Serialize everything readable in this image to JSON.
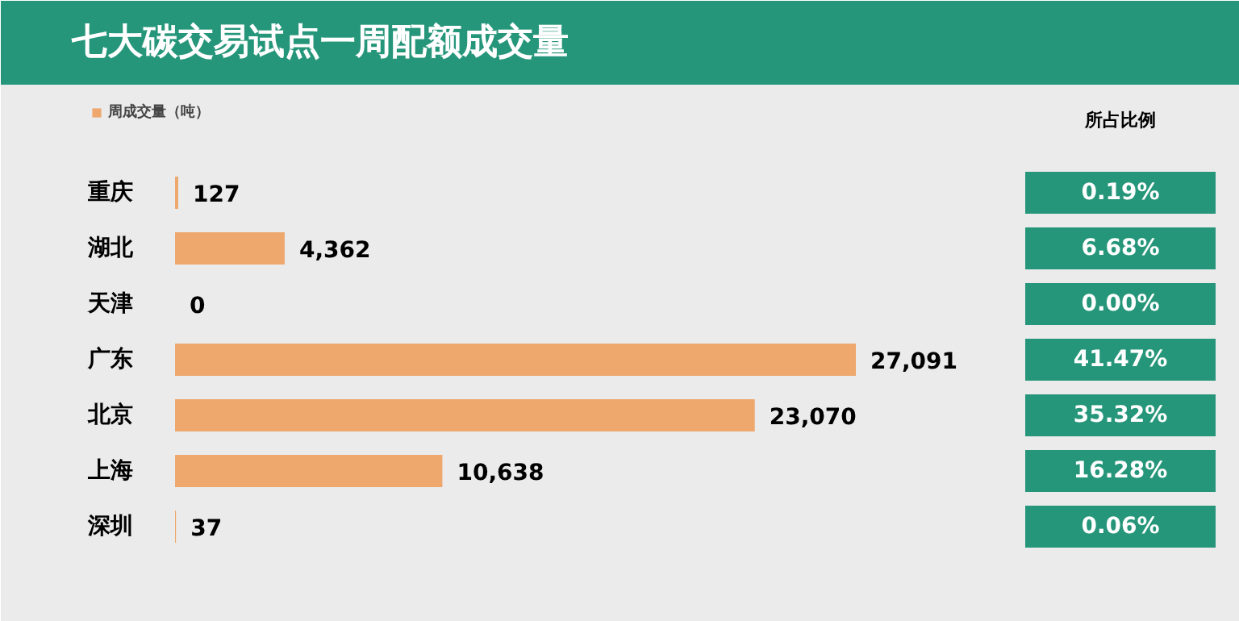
{
  "chart_data": {
    "type": "bar",
    "orientation": "horizontal",
    "title": "七大碳交易试点一周配额成交量",
    "legend_title": "所占比例",
    "categories": [
      "重庆",
      "湖北",
      "天津",
      "广东",
      "北京",
      "上海",
      "深圳"
    ],
    "series": [
      {
        "name": "周成交量（吨）",
        "color": "#eea86e",
        "values": [
          127,
          4362,
          0,
          27091,
          23070,
          10638,
          37
        ],
        "value_labels": [
          "127",
          "4,362",
          "0",
          "27,091",
          "23,070",
          "10,638",
          "37"
        ]
      }
    ],
    "legend": "top left",
    "annotations": [
      "0.19%",
      "6.68%",
      "0.00%",
      "41.47%",
      "35.32%",
      "16.28%",
      "0.06%"
    ]
  }
}
